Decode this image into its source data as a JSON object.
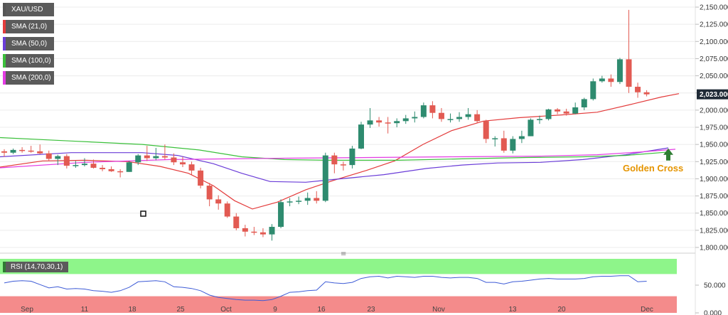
{
  "chart_data": {
    "type": "candlestick",
    "symbol": "XAU/USD",
    "ylim": [
      1800,
      2150
    ],
    "yticks": [
      "2,150.000",
      "2,125.000",
      "2,100.000",
      "2,075.000",
      "2,050.000",
      "2,025.000",
      "2,000.000",
      "1,975.000",
      "1,950.000",
      "1,925.000",
      "1,900.000",
      "1,875.000",
      "1,850.000",
      "1,825.000",
      "1,800.000"
    ],
    "last_price": "2,023.000",
    "xticks": [
      "Sep",
      "11",
      "18",
      "25",
      "Oct",
      "9",
      "16",
      "23",
      "Nov",
      "13",
      "20",
      "Dec"
    ],
    "candles": [
      [
        1940,
        1943,
        1932,
        1938
      ],
      [
        1938,
        1944,
        1936,
        1942
      ],
      [
        1942,
        1946,
        1938,
        1941
      ],
      [
        1941,
        1948,
        1938,
        1940
      ],
      [
        1940,
        1950,
        1936,
        1937
      ],
      [
        1937,
        1941,
        1926,
        1929
      ],
      [
        1929,
        1935,
        1920,
        1933
      ],
      [
        1933,
        1936,
        1915,
        1919
      ],
      [
        1919,
        1926,
        1916,
        1920
      ],
      [
        1920,
        1930,
        1918,
        1922
      ],
      [
        1922,
        1928,
        1915,
        1916
      ],
      [
        1916,
        1920,
        1911,
        1914
      ],
      [
        1914,
        1918,
        1910,
        1911
      ],
      [
        1911,
        1914,
        1902,
        1910
      ],
      [
        1910,
        1926,
        1910,
        1924
      ],
      [
        1924,
        1936,
        1920,
        1934
      ],
      [
        1934,
        1948,
        1926,
        1930
      ],
      [
        1930,
        1945,
        1927,
        1933
      ],
      [
        1933,
        1950,
        1928,
        1931
      ],
      [
        1931,
        1937,
        1920,
        1924
      ],
      [
        1924,
        1932,
        1917,
        1921
      ],
      [
        1921,
        1925,
        1906,
        1912
      ],
      [
        1912,
        1916,
        1886,
        1890
      ],
      [
        1890,
        1894,
        1860,
        1870
      ],
      [
        1870,
        1876,
        1855,
        1864
      ],
      [
        1864,
        1867,
        1843,
        1845
      ],
      [
        1845,
        1850,
        1825,
        1828
      ],
      [
        1828,
        1833,
        1816,
        1823
      ],
      [
        1823,
        1830,
        1818,
        1822
      ],
      [
        1822,
        1828,
        1815,
        1819
      ],
      [
        1819,
        1834,
        1810,
        1830
      ],
      [
        1830,
        1870,
        1828,
        1866
      ],
      [
        1866,
        1872,
        1860,
        1867
      ],
      [
        1867,
        1874,
        1863,
        1868
      ],
      [
        1868,
        1880,
        1862,
        1872
      ],
      [
        1872,
        1882,
        1864,
        1868
      ],
      [
        1868,
        1938,
        1866,
        1934
      ],
      [
        1934,
        1938,
        1908,
        1921
      ],
      [
        1921,
        1925,
        1912,
        1920
      ],
      [
        1920,
        1948,
        1915,
        1944
      ],
      [
        1944,
        1983,
        1943,
        1979
      ],
      [
        1979,
        2003,
        1974,
        1985
      ],
      [
        1985,
        1990,
        1976,
        1982
      ],
      [
        1982,
        1990,
        1966,
        1981
      ],
      [
        1981,
        1988,
        1975,
        1984
      ],
      [
        1984,
        1993,
        1980,
        1988
      ],
      [
        1988,
        1998,
        1982,
        1990
      ],
      [
        1990,
        2011,
        1988,
        2007
      ],
      [
        2007,
        2013,
        1988,
        1996
      ],
      [
        1996,
        2003,
        1983,
        1987
      ],
      [
        1987,
        1995,
        1982,
        1987
      ],
      [
        1987,
        1997,
        1983,
        1990
      ],
      [
        1990,
        2003,
        1986,
        1994
      ],
      [
        1994,
        2000,
        1981,
        1984
      ],
      [
        1984,
        1986,
        1952,
        1958
      ],
      [
        1958,
        1962,
        1947,
        1959
      ],
      [
        1959,
        1970,
        1938,
        1941
      ],
      [
        1941,
        1962,
        1937,
        1958
      ],
      [
        1958,
        1970,
        1952,
        1962
      ],
      [
        1962,
        1988,
        1962,
        1986
      ],
      [
        1986,
        1992,
        1980,
        1987
      ],
      [
        1987,
        2002,
        1985,
        2001
      ],
      [
        2001,
        2003,
        1994,
        1998
      ],
      [
        1998,
        2002,
        1992,
        1995
      ],
      [
        1995,
        2011,
        1994,
        2004
      ],
      [
        2004,
        2018,
        2000,
        2016
      ],
      [
        2016,
        2046,
        2014,
        2042
      ],
      [
        2042,
        2050,
        2040,
        2046
      ],
      [
        2046,
        2052,
        2034,
        2041
      ],
      [
        2041,
        2076,
        2038,
        2074
      ],
      [
        2074,
        2146,
        2025,
        2034
      ],
      [
        2034,
        2040,
        2018,
        2026
      ],
      [
        2026,
        2029,
        2020,
        2023
      ]
    ],
    "series": [
      {
        "name": "SMA (21,0)",
        "color": "#e33b3b",
        "values": [
          [
            0,
            1917
          ],
          [
            60,
            1926
          ],
          [
            120,
            1927
          ],
          [
            180,
            1925
          ],
          [
            225,
            1918
          ],
          [
            265,
            1908
          ],
          [
            300,
            1890
          ],
          [
            330,
            1868
          ],
          [
            355,
            1856
          ],
          [
            390,
            1866
          ],
          [
            430,
            1884
          ],
          [
            470,
            1898
          ],
          [
            515,
            1912
          ],
          [
            555,
            1926
          ],
          [
            595,
            1950
          ],
          [
            635,
            1970
          ],
          [
            680,
            1984
          ],
          [
            730,
            1989
          ],
          [
            790,
            1993
          ],
          [
            840,
            1997
          ],
          [
            890,
            2009
          ],
          [
            930,
            2019
          ],
          [
            955,
            2024
          ]
        ]
      },
      {
        "name": "SMA (50,0)",
        "color": "#6a3cd8",
        "values": [
          [
            0,
            1932
          ],
          [
            100,
            1938
          ],
          [
            200,
            1938
          ],
          [
            250,
            1934
          ],
          [
            300,
            1922
          ],
          [
            340,
            1908
          ],
          [
            380,
            1896
          ],
          [
            430,
            1895
          ],
          [
            480,
            1900
          ],
          [
            540,
            1906
          ],
          [
            600,
            1915
          ],
          [
            650,
            1920
          ],
          [
            700,
            1923
          ],
          [
            760,
            1924
          ],
          [
            820,
            1928
          ],
          [
            880,
            1935
          ],
          [
            940,
            1945
          ]
        ]
      },
      {
        "name": "SMA (100,0)",
        "color": "#3bc03b",
        "values": [
          [
            0,
            1960
          ],
          [
            100,
            1955
          ],
          [
            200,
            1950
          ],
          [
            280,
            1942
          ],
          [
            340,
            1932
          ],
          [
            400,
            1928
          ],
          [
            460,
            1927
          ],
          [
            560,
            1927
          ],
          [
            650,
            1929
          ],
          [
            740,
            1931
          ],
          [
            820,
            1932
          ],
          [
            880,
            1934
          ],
          [
            940,
            1939
          ]
        ]
      },
      {
        "name": "SMA (200,0)",
        "color": "#e33be3",
        "values": [
          [
            0,
            1916
          ],
          [
            120,
            1924
          ],
          [
            240,
            1928
          ],
          [
            320,
            1929
          ],
          [
            400,
            1930
          ],
          [
            520,
            1931
          ],
          [
            640,
            1932
          ],
          [
            760,
            1933
          ],
          [
            840,
            1935
          ],
          [
            900,
            1939
          ],
          [
            950,
            1943
          ]
        ]
      }
    ],
    "annotation": {
      "text": "Golden Cross",
      "x": 940,
      "y": 1938
    },
    "rsi": {
      "label": "RSI (14,70,30,1)",
      "ylim": [
        0,
        100
      ],
      "yticks": [
        "50.000",
        "0.000"
      ],
      "overbought": 70,
      "oversold": 30,
      "values": [
        54,
        57,
        58,
        57,
        51,
        45,
        47,
        43,
        44,
        43,
        40,
        39,
        37,
        40,
        46,
        56,
        57,
        58,
        56,
        47,
        46,
        44,
        40,
        32,
        28,
        26,
        24,
        23,
        23,
        22,
        24,
        30,
        37,
        38,
        40,
        41,
        56,
        54,
        53,
        55,
        62,
        65,
        66,
        63,
        66,
        65,
        64,
        66,
        66,
        64,
        63,
        64,
        64,
        62,
        55,
        55,
        52,
        56,
        57,
        59,
        61,
        62,
        61,
        61,
        61,
        62,
        65,
        66,
        66,
        67,
        67,
        56,
        57
      ]
    }
  },
  "ui": {
    "divider": "≡"
  }
}
